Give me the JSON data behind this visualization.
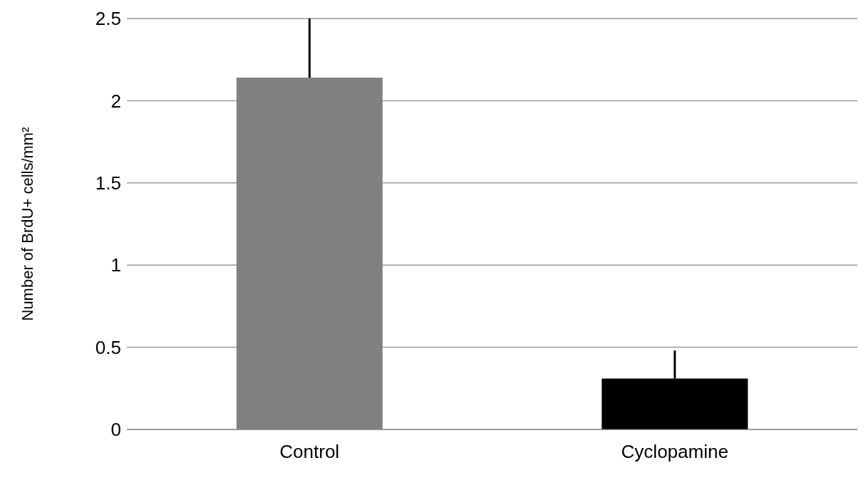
{
  "chart_data": {
    "type": "bar",
    "ylabel": "Number of BrdU+ cells/mm²",
    "categories": [
      "Control",
      "Cyclopamine"
    ],
    "values": [
      2.14,
      0.31
    ],
    "colors": [
      "#808080",
      "#000000"
    ],
    "errors": [
      [
        2.14,
        2.5
      ],
      [
        0.31,
        0.48
      ]
    ],
    "ylim": [
      0,
      2.5
    ],
    "yticks": [
      0,
      0.5,
      1,
      1.5,
      2,
      2.5
    ],
    "grid": "y"
  }
}
